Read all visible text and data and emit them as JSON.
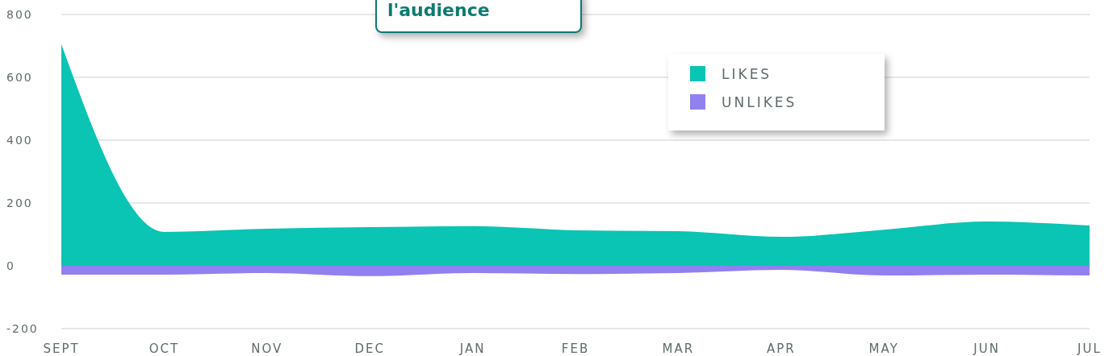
{
  "chart_data": {
    "type": "area",
    "categories": [
      "SEPT",
      "OCT",
      "NOV",
      "DEC",
      "JAN",
      "FEB",
      "MAR",
      "APR",
      "MAY",
      "JUN",
      "JUL"
    ],
    "series": [
      {
        "name": "LIKES",
        "color": "#0ac4b4",
        "values": [
          705,
          108,
          118,
          123,
          126,
          113,
          110,
          92,
          115,
          141,
          128
        ]
      },
      {
        "name": "UNLIKES",
        "color": "#9180f0",
        "values": [
          -28,
          -28,
          -23,
          -33,
          -23,
          -26,
          -23,
          -13,
          -31,
          -28,
          -31
        ]
      }
    ],
    "ylim": [
      -200,
      800
    ],
    "yticks": [
      -200,
      0,
      200,
      400,
      600,
      800
    ],
    "grid": "y",
    "legend": "top right",
    "annotations": [
      "l'audience"
    ]
  }
}
